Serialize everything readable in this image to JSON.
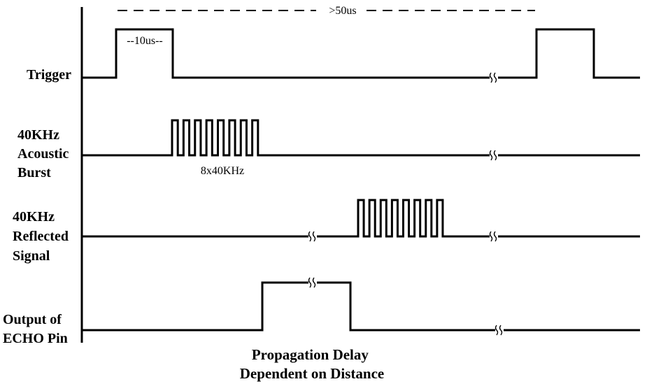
{
  "signals": [
    {
      "label_lines": [
        "Trigger"
      ]
    },
    {
      "label_lines": [
        "40KHz",
        "Acoustic",
        "Burst"
      ]
    },
    {
      "label_lines": [
        "40KHz",
        "Reflected",
        "Signal"
      ]
    },
    {
      "label_lines": [
        "Output of",
        "ECHO Pin"
      ]
    }
  ],
  "annotations": {
    "period": ">50us",
    "pulse_width": "--10us--",
    "burst": "8x40KHz"
  },
  "caption_lines": [
    "Propagation Delay",
    "Dependent on Distance"
  ],
  "burst_cycles": 8
}
